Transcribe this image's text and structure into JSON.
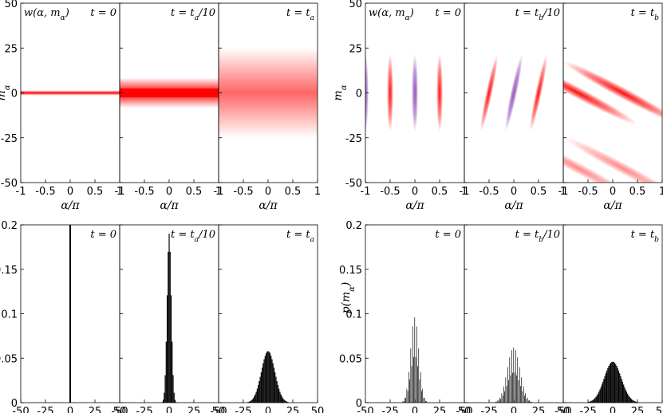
{
  "colors": {
    "red": "#ff0000",
    "purple": "#7a2aa8",
    "bar": "#000000",
    "axis": "#000000"
  },
  "chart_data": [
    {
      "type": "heatmap",
      "ylabel": "mα",
      "xlabel": "α/π",
      "xlim": [
        -1,
        1
      ],
      "ylim": [
        -50,
        50
      ],
      "yticks": [
        "50",
        "25",
        "0",
        "-25",
        "-50"
      ],
      "xticks": [
        "-1",
        "-0.5",
        "0",
        "0.5",
        "1"
      ],
      "panel_titles": [
        "t = 0",
        "t = ta/10",
        "t = ta"
      ],
      "function_label": "w(α, mα)",
      "series": [
        {
          "name": "t = 0",
          "band_halfwidth_m": 1
        },
        {
          "name": "t = ta/10",
          "band_halfwidth_m": 6
        },
        {
          "name": "t = ta",
          "band_halfwidth_m": 18
        }
      ]
    },
    {
      "type": "heatmap",
      "ylabel": "mα",
      "xlabel": "α/π",
      "xlim": [
        -1,
        1
      ],
      "ylim": [
        -50,
        50
      ],
      "yticks": [
        "50",
        "25",
        "0",
        "-25",
        "-50"
      ],
      "xticks": [
        "-1",
        "-0.5",
        "0",
        "0.5",
        "1"
      ],
      "panel_titles": [
        "t = 0",
        "t = tb/10",
        "t = tb"
      ],
      "function_label": "w(α, mα)",
      "series": [
        {
          "name": "t = 0",
          "stripe_centers_alpha": [
            -1,
            -0.5,
            0,
            0.5
          ],
          "stripe_halfheight_m": 22
        },
        {
          "name": "t = tb/10",
          "stripe_centers_alpha": [
            -0.5,
            0,
            0.5
          ],
          "stripe_halfheight_m": 22
        },
        {
          "name": "t = tb",
          "stripe_centers_alpha": [
            -0.7,
            0.2
          ],
          "stripe_halfheight_m": 22
        }
      ]
    },
    {
      "type": "bar",
      "ylabel": "",
      "xlim": [
        -50,
        50
      ],
      "ylim": [
        0,
        0.2
      ],
      "yticks": [
        "0.2",
        "0.15",
        "0.1",
        "0.05",
        "0"
      ],
      "xticks": [
        "-50",
        "-25",
        "0",
        "25",
        "50"
      ],
      "panel_titles": [
        "t = 0",
        "t = ta/10",
        "t = ta"
      ],
      "series": [
        {
          "name": "t = 0",
          "shape": "delta",
          "peak": 1.0
        },
        {
          "name": "t = ta/10",
          "shape": "gaussian",
          "peak": 0.19,
          "sigma": 2.1
        },
        {
          "name": "t = ta",
          "shape": "gaussian",
          "peak": 0.058,
          "sigma": 6.8
        }
      ]
    },
    {
      "type": "bar",
      "ylabel": "p(mα)",
      "xlim": [
        -50,
        50
      ],
      "ylim": [
        0,
        0.2
      ],
      "yticks": [
        "0.2",
        "0.15",
        "0.1",
        "0.05",
        "0"
      ],
      "xticks": [
        "-50",
        "-25",
        "0",
        "25",
        "50"
      ],
      "panel_titles": [
        "t = 0",
        "t = tb/10",
        "t = tb"
      ],
      "series": [
        {
          "name": "t = 0",
          "shape": "gaussian-alternating",
          "peak": 0.096,
          "sigma": 4.2
        },
        {
          "name": "t = tb/10",
          "shape": "gaussian-alternating",
          "peak": 0.062,
          "sigma": 6.4
        },
        {
          "name": "t = tb",
          "shape": "gaussian",
          "peak": 0.046,
          "sigma": 8.6
        }
      ]
    }
  ]
}
